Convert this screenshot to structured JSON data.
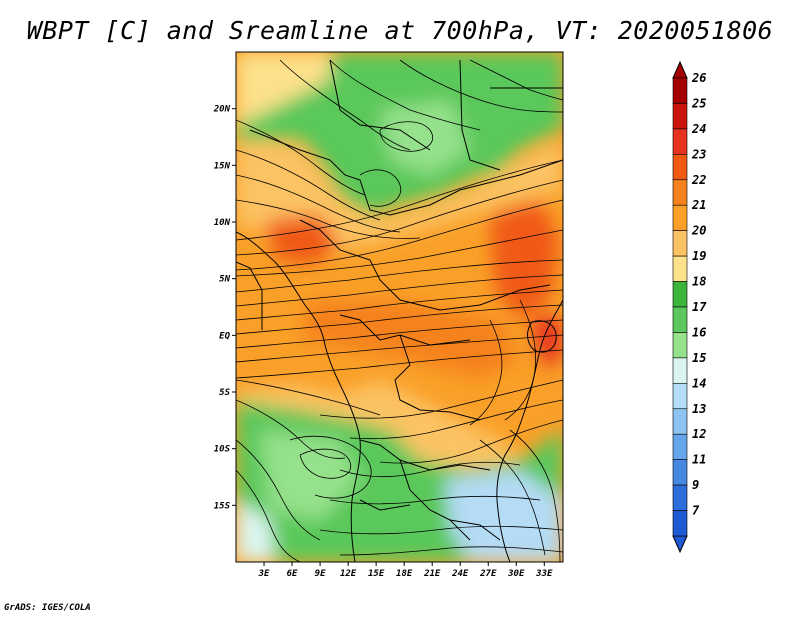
{
  "title": "WBPT [C] and Sreamline at 700hPa, VT: 2020051806",
  "credit": "GrADS: IGES/COLA",
  "map": {
    "lon_range": [
      0,
      35
    ],
    "lat_range": [
      -20,
      25
    ],
    "lat_ticks": [
      {
        "label": "20N",
        "value": 20
      },
      {
        "label": "15N",
        "value": 15
      },
      {
        "label": "10N",
        "value": 10
      },
      {
        "label": "5N",
        "value": 5
      },
      {
        "label": "EQ",
        "value": 0
      },
      {
        "label": "5S",
        "value": -5
      },
      {
        "label": "10S",
        "value": -10
      },
      {
        "label": "15S",
        "value": -15
      }
    ],
    "lon_ticks": [
      {
        "label": "3E",
        "value": 3
      },
      {
        "label": "6E",
        "value": 6
      },
      {
        "label": "9E",
        "value": 9
      },
      {
        "label": "12E",
        "value": 12
      },
      {
        "label": "15E",
        "value": 15
      },
      {
        "label": "18E",
        "value": 18
      },
      {
        "label": "21E",
        "value": 21
      },
      {
        "label": "24E",
        "value": 24
      },
      {
        "label": "27E",
        "value": 27
      },
      {
        "label": "30E",
        "value": 30
      },
      {
        "label": "33E",
        "value": 33
      }
    ]
  },
  "colorbar": {
    "levels": [
      {
        "label": "26",
        "color": "#a50000"
      },
      {
        "label": "25",
        "color": "#c8140a"
      },
      {
        "label": "24",
        "color": "#e6321e"
      },
      {
        "label": "23",
        "color": "#f05a14"
      },
      {
        "label": "22",
        "color": "#f5821e"
      },
      {
        "label": "21",
        "color": "#faa028"
      },
      {
        "label": "20",
        "color": "#fcc364"
      },
      {
        "label": "19",
        "color": "#fde18c"
      },
      {
        "label": "18",
        "color": "#3cb43c"
      },
      {
        "label": "17",
        "color": "#5ac85a"
      },
      {
        "label": "16",
        "color": "#96e18c"
      },
      {
        "label": "15",
        "color": "#dcf5f0"
      },
      {
        "label": "14",
        "color": "#b4dcf5"
      },
      {
        "label": "13",
        "color": "#8cc3f0"
      },
      {
        "label": "12",
        "color": "#64a5eb"
      },
      {
        "label": "11",
        "color": "#4687e1"
      },
      {
        "label": "9",
        "color": "#2d6edc"
      },
      {
        "label": "7",
        "color": "#1e5ad2"
      }
    ],
    "over_color": "#a50000",
    "under_color": "#1e5ad2"
  }
}
